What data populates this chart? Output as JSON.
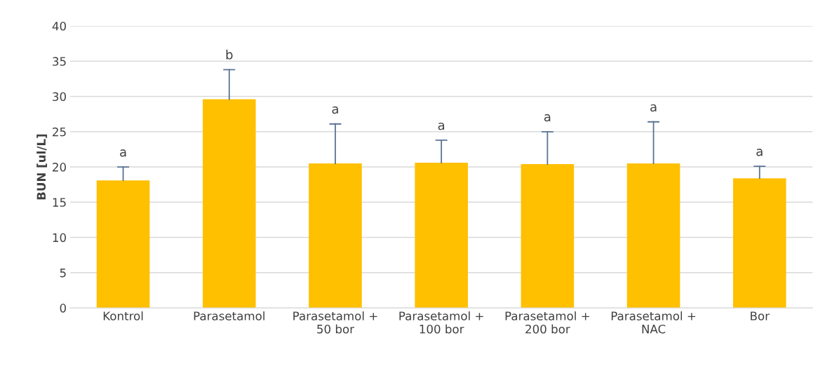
{
  "chart_data": {
    "type": "bar",
    "ylabel": "BUN [ul/L]",
    "categories": [
      "Kontrol",
      "Parasetamol",
      "Parasetamol +\n50 bor",
      "Parasetamol +\n100 bor",
      "Parasetamol +\n200 bor",
      "Parasetamol +\nNAC",
      "Bor"
    ],
    "values": [
      18.1,
      29.6,
      20.5,
      20.6,
      20.4,
      20.5,
      18.4
    ],
    "color": "#ffc000",
    "errors": [
      [
        18.1,
        20.0
      ],
      [
        29.6,
        33.8
      ],
      [
        20.5,
        26.1
      ],
      [
        20.6,
        23.8
      ],
      [
        20.4,
        25.0
      ],
      [
        20.5,
        26.4
      ],
      [
        18.4,
        20.1
      ]
    ],
    "ylim": [
      0,
      40
    ],
    "yticks": [
      0,
      5,
      10,
      15,
      20,
      25,
      30,
      35,
      40
    ],
    "grid": "y",
    "annotations": [
      {
        "text": "a",
        "x": "Kontrol",
        "y": 20.0
      },
      {
        "text": "b",
        "x": "Parasetamol",
        "y": 33.8
      },
      {
        "text": "a",
        "x": "Parasetamol +\n50 bor",
        "y": 26.1
      },
      {
        "text": "a",
        "x": "Parasetamol +\n100 bor",
        "y": 23.8
      },
      {
        "text": "a",
        "x": "Parasetamol +\n200 bor",
        "y": 25.0
      },
      {
        "text": "a",
        "x": "Parasetamol +\nNAC",
        "y": 26.4
      },
      {
        "text": "a",
        "x": "Bor",
        "y": 20.1
      }
    ]
  }
}
